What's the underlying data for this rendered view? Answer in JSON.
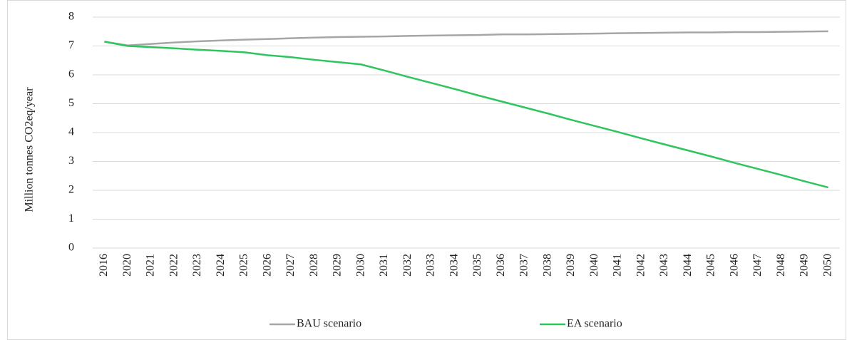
{
  "chart_data": {
    "type": "line",
    "y_label": "Million tonnes CO2eq/year",
    "categories": [
      "2016",
      "2020",
      "2021",
      "2022",
      "2023",
      "2024",
      "2025",
      "2026",
      "2027",
      "2028",
      "2029",
      "2030",
      "2031",
      "2032",
      "2033",
      "2034",
      "2035",
      "2036",
      "2037",
      "2038",
      "2039",
      "2040",
      "2041",
      "2042",
      "2043",
      "2044",
      "2045",
      "2046",
      "2047",
      "2048",
      "2049",
      "2050"
    ],
    "series": [
      {
        "name": "BAU scenario",
        "color": "#a6a6a6",
        "values": [
          7.15,
          7.02,
          7.07,
          7.12,
          7.16,
          7.19,
          7.22,
          7.24,
          7.27,
          7.29,
          7.31,
          7.32,
          7.33,
          7.35,
          7.36,
          7.37,
          7.38,
          7.4,
          7.4,
          7.41,
          7.42,
          7.43,
          7.44,
          7.45,
          7.46,
          7.47,
          7.47,
          7.48,
          7.48,
          7.49,
          7.5,
          7.51
        ]
      },
      {
        "name": "EA scenario",
        "color": "#2ec45e",
        "values": [
          7.15,
          7.0,
          6.96,
          6.92,
          6.87,
          6.83,
          6.78,
          6.68,
          6.61,
          6.52,
          6.44,
          6.36,
          6.15,
          5.93,
          5.72,
          5.51,
          5.29,
          5.08,
          4.87,
          4.66,
          4.44,
          4.23,
          4.02,
          3.8,
          3.59,
          3.38,
          3.17,
          2.95,
          2.74,
          2.53,
          2.31,
          2.1
        ]
      }
    ],
    "ylim": [
      0,
      8
    ],
    "yticks": [
      0,
      1,
      2,
      3,
      4,
      5,
      6,
      7,
      8
    ],
    "grid": true,
    "legend": "bottom"
  }
}
